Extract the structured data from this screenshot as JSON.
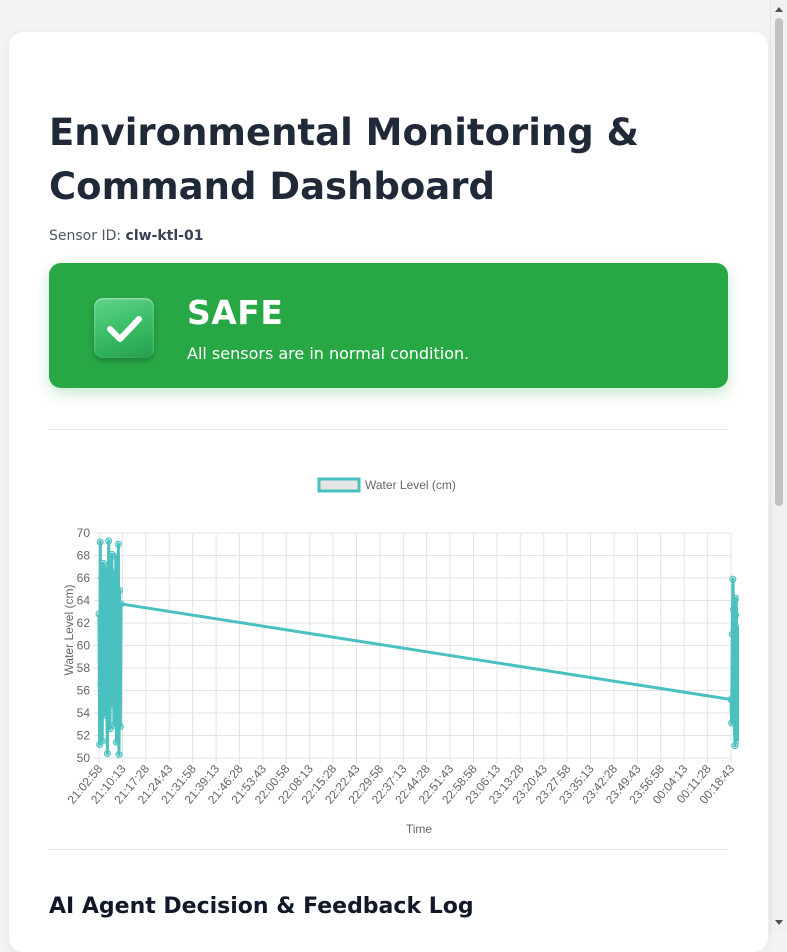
{
  "page": {
    "title": "Environmental Monitoring & Command Dashboard",
    "sensor_label": "Sensor ID:",
    "sensor_id": "clw-ktl-01"
  },
  "status": {
    "title": "SAFE",
    "message": "All sensors are in normal condition.",
    "color": "#28a745",
    "icon": "check-icon"
  },
  "chart_data": {
    "type": "line",
    "series": [
      {
        "name": "Water Level (cm)",
        "color": "#4bc0c0"
      }
    ],
    "xlabel": "Time",
    "ylabel": "Water Level (cm)",
    "ylim": [
      50,
      70
    ],
    "yticks": [
      50,
      52,
      54,
      56,
      58,
      60,
      62,
      64,
      66,
      68,
      70
    ],
    "categories": [
      "21:02:58",
      "21:10:13",
      "21:17:28",
      "21:24:43",
      "21:31:58",
      "21:39:13",
      "21:46:28",
      "21:53:43",
      "22:00:58",
      "22:08:13",
      "22:15:28",
      "22:22:43",
      "22:29:58",
      "22:37:13",
      "22:44:28",
      "22:51:43",
      "22:58:58",
      "23:06:13",
      "23:13:28",
      "23:20:43",
      "23:27:58",
      "23:35:13",
      "23:42:28",
      "23:49:43",
      "23:56:58",
      "00:04:13",
      "00:11:28",
      "00:18:43"
    ],
    "points": [
      {
        "x": "21:02:58",
        "y": 62.8
      },
      {
        "x": "21:03:10",
        "y": 51.2
      },
      {
        "x": "21:03:22",
        "y": 69.2
      },
      {
        "x": "21:03:34",
        "y": 56.5
      },
      {
        "x": "21:03:46",
        "y": 66.0
      },
      {
        "x": "21:03:58",
        "y": 51.5
      },
      {
        "x": "21:04:10",
        "y": 60.3
      },
      {
        "x": "21:04:22",
        "y": 67.3
      },
      {
        "x": "21:04:34",
        "y": 53.8
      },
      {
        "x": "21:04:46",
        "y": 64.1
      },
      {
        "x": "21:04:58",
        "y": 58.8
      },
      {
        "x": "21:05:10",
        "y": 66.9
      },
      {
        "x": "21:05:22",
        "y": 55.6
      },
      {
        "x": "21:05:34",
        "y": 50.4
      },
      {
        "x": "21:05:46",
        "y": 62.4
      },
      {
        "x": "21:05:58",
        "y": 69.3
      },
      {
        "x": "21:06:10",
        "y": 57.2
      },
      {
        "x": "21:06:22",
        "y": 52.6
      },
      {
        "x": "21:06:34",
        "y": 65.4
      },
      {
        "x": "21:06:46",
        "y": 59.9
      },
      {
        "x": "21:06:58",
        "y": 68.1
      },
      {
        "x": "21:07:10",
        "y": 54.7
      },
      {
        "x": "21:07:22",
        "y": 61.7
      },
      {
        "x": "21:07:34",
        "y": 52.9
      },
      {
        "x": "21:07:46",
        "y": 66.5
      },
      {
        "x": "21:07:58",
        "y": 55.2
      },
      {
        "x": "21:08:10",
        "y": 67.9
      },
      {
        "x": "21:08:22",
        "y": 51.4
      },
      {
        "x": "21:08:34",
        "y": 63.2
      },
      {
        "x": "21:08:46",
        "y": 58.1
      },
      {
        "x": "21:08:58",
        "y": 69.0
      },
      {
        "x": "21:09:10",
        "y": 50.3
      },
      {
        "x": "21:09:22",
        "y": 64.9
      },
      {
        "x": "21:09:34",
        "y": 52.8
      },
      {
        "x": "21:09:46",
        "y": 63.7
      },
      {
        "x": "00:18:43",
        "y": 55.2
      },
      {
        "x": "00:18:55",
        "y": 53.1
      },
      {
        "x": "00:19:07",
        "y": 61.0
      },
      {
        "x": "00:19:19",
        "y": 65.9
      },
      {
        "x": "00:19:31",
        "y": 63.2
      },
      {
        "x": "00:19:43",
        "y": 53.6
      },
      {
        "x": "00:19:55",
        "y": 51.1
      },
      {
        "x": "00:20:07",
        "y": 62.7
      },
      {
        "x": "00:20:19",
        "y": 64.2
      },
      {
        "x": "00:20:31",
        "y": 60.9
      },
      {
        "x": "00:20:43",
        "y": 51.6
      },
      {
        "x": "00:20:55",
        "y": 60.2
      },
      {
        "x": "00:21:07",
        "y": 61.5
      },
      {
        "x": "00:21:19",
        "y": 59.1
      },
      {
        "x": "00:21:31",
        "y": 51.9
      }
    ]
  },
  "log": {
    "title": "AI Agent Decision & Feedback Log"
  }
}
